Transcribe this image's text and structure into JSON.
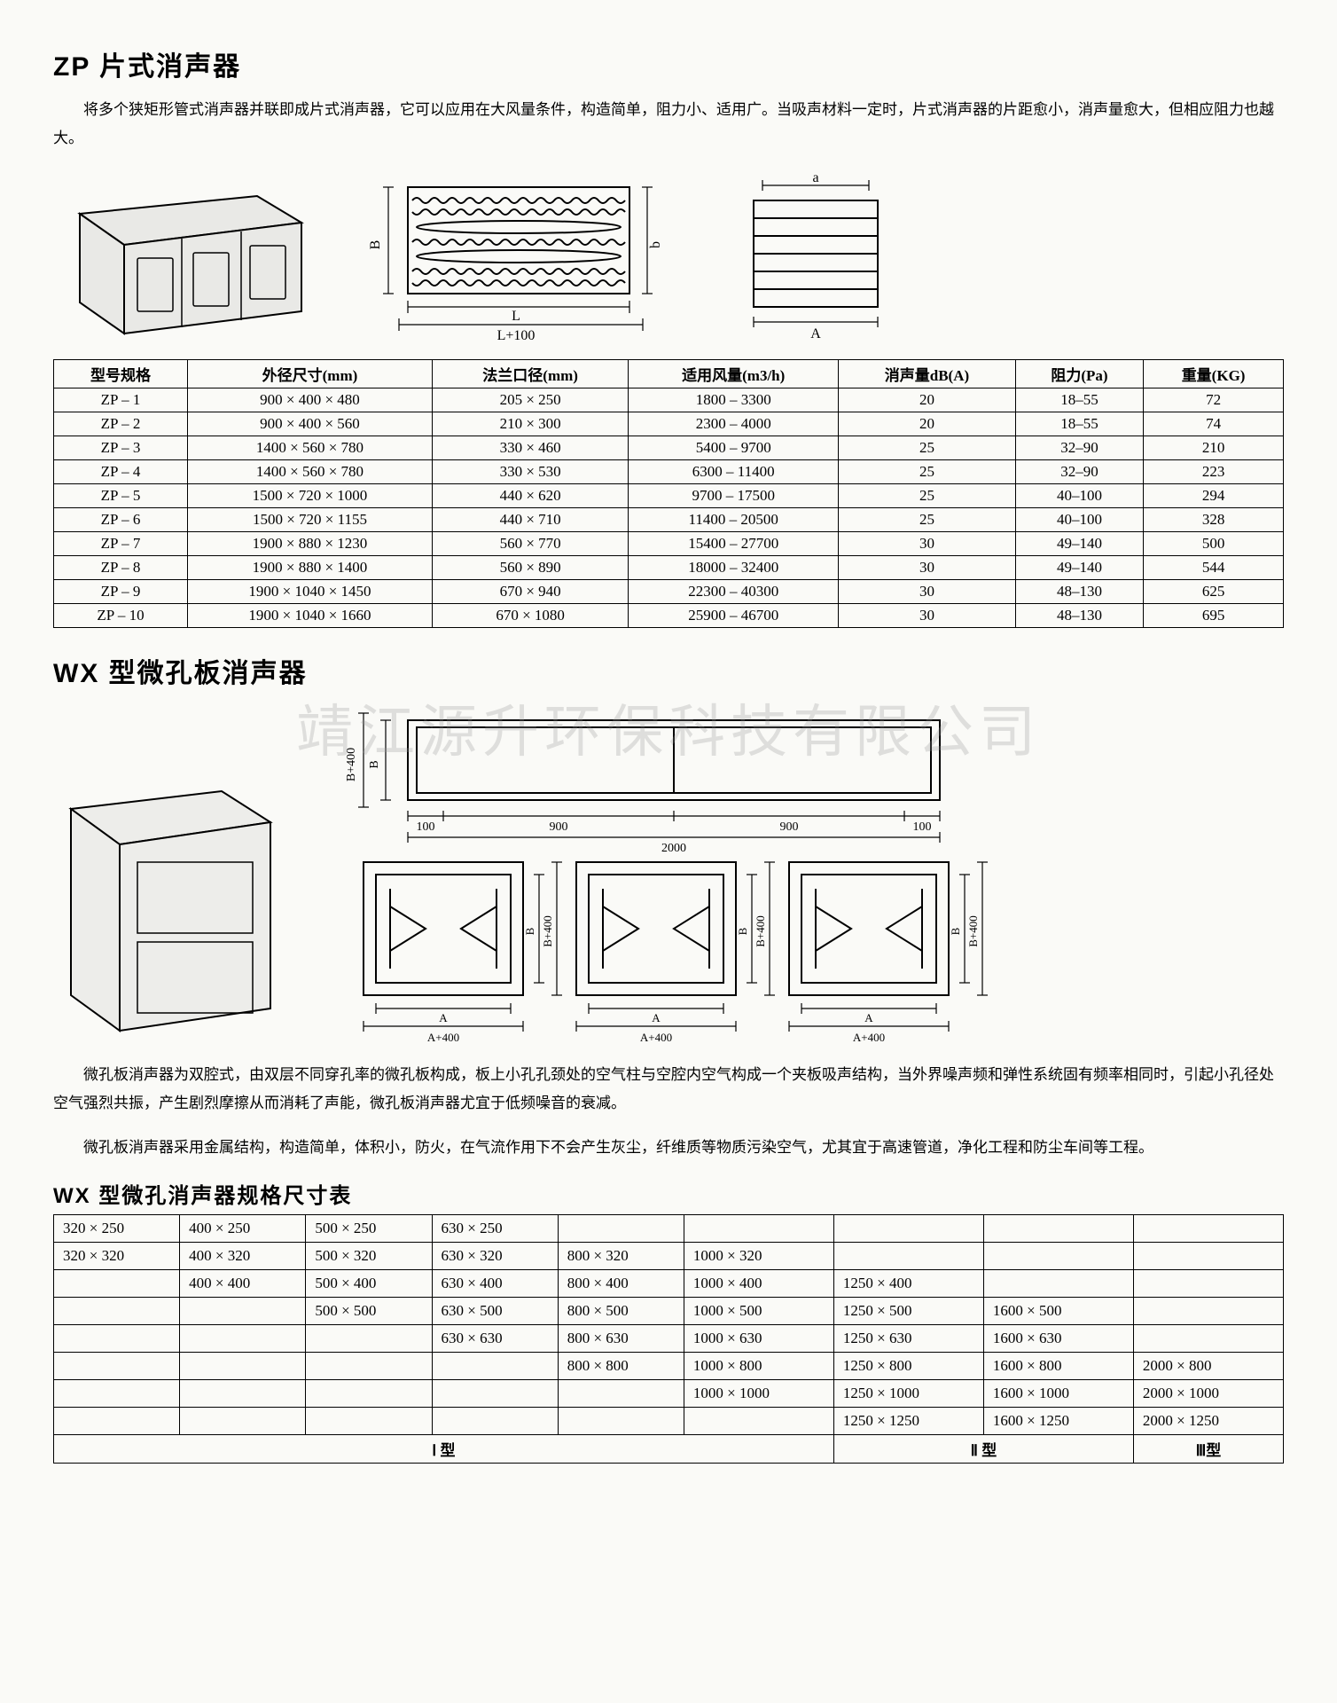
{
  "zp": {
    "title": "ZP 片式消声器",
    "intro": "将多个狭矩形管式消声器并联即成片式消声器，它可以应用在大风量条件，构造简单，阻力小、适用广。当吸声材料一定时，片式消声器的片距愈小，消声量愈大，但相应阻力也越大。",
    "diagram": {
      "labels": {
        "L": "L",
        "Lplus": "L+100",
        "B": "B",
        "b": "b",
        "a": "a",
        "A": "A"
      },
      "stroke": "#000"
    },
    "table": {
      "headers": [
        "型号规格",
        "外径尺寸(mm)",
        "法兰口径(mm)",
        "适用风量(m3/h)",
        "消声量dB(A)",
        "阻力(Pa)",
        "重量(KG)"
      ],
      "rows": [
        [
          "ZP – 1",
          "900 × 400 × 480",
          "205 × 250",
          "1800 – 3300",
          "20",
          "18–55",
          "72"
        ],
        [
          "ZP – 2",
          "900 × 400 × 560",
          "210 × 300",
          "2300 – 4000",
          "20",
          "18–55",
          "74"
        ],
        [
          "ZP – 3",
          "1400 × 560 × 780",
          "330 × 460",
          "5400 – 9700",
          "25",
          "32–90",
          "210"
        ],
        [
          "ZP – 4",
          "1400 × 560 × 780",
          "330 × 530",
          "6300 – 11400",
          "25",
          "32–90",
          "223"
        ],
        [
          "ZP – 5",
          "1500 × 720 × 1000",
          "440 × 620",
          "9700 – 17500",
          "25",
          "40–100",
          "294"
        ],
        [
          "ZP – 6",
          "1500 × 720 × 1155",
          "440 × 710",
          "11400 – 20500",
          "25",
          "40–100",
          "328"
        ],
        [
          "ZP – 7",
          "1900 × 880 × 1230",
          "560 × 770",
          "15400 – 27700",
          "30",
          "49–140",
          "500"
        ],
        [
          "ZP – 8",
          "1900 × 880 × 1400",
          "560 × 890",
          "18000 – 32400",
          "30",
          "49–140",
          "544"
        ],
        [
          "ZP – 9",
          "1900 × 1040 × 1450",
          "670 × 940",
          "22300 – 40300",
          "30",
          "48–130",
          "625"
        ],
        [
          "ZP – 10",
          "1900 × 1040 × 1660",
          "670 × 1080",
          "25900 – 46700",
          "30",
          "48–130",
          "695"
        ]
      ]
    }
  },
  "wx": {
    "title": "WX 型微孔板消声器",
    "watermark": "靖江源升环保科技有限公司",
    "diagram": {
      "labels": {
        "B": "B",
        "Bplus": "B+400",
        "hundred": "100",
        "ninehundred": "900",
        "twothousand": "2000",
        "A": "A",
        "Aplus": "A+400"
      }
    },
    "para1": "微孔板消声器为双腔式，由双层不同穿孔率的微孔板构成，板上小孔孔颈处的空气柱与空腔内空气构成一个夹板吸声结构，当外界噪声频和弹性系统固有频率相同时，引起小孔径处空气强烈共振，产生剧烈摩擦从而消耗了声能，微孔板消声器尤宜于低频噪音的衰减。",
    "para2": "微孔板消声器采用金属结构，构造简单，体积小，防火，在气流作用下不会产生灰尘，纤维质等物质污染空气，尤其宜于高速管道，净化工程和防尘车间等工程。",
    "sizetable_title": "WX 型微孔消声器规格尺寸表",
    "sizes": {
      "types": [
        "Ⅰ 型",
        "Ⅱ 型",
        "Ⅲ型"
      ],
      "grid": [
        [
          "320 × 250",
          "400 × 250",
          "500 × 250",
          "630 × 250",
          "",
          "",
          "",
          "",
          ""
        ],
        [
          "320 × 320",
          "400 × 320",
          "500 × 320",
          "630 × 320",
          "800 × 320",
          "1000 × 320",
          "",
          "",
          ""
        ],
        [
          "",
          "400 × 400",
          "500 × 400",
          "630 × 400",
          "800 × 400",
          "1000 × 400",
          "1250 × 400",
          "",
          ""
        ],
        [
          "",
          "",
          "500 × 500",
          "630 × 500",
          "800 × 500",
          "1000 × 500",
          "1250 × 500",
          "1600 × 500",
          ""
        ],
        [
          "",
          "",
          "",
          "630 × 630",
          "800 × 630",
          "1000 × 630",
          "1250 × 630",
          "1600 × 630",
          ""
        ],
        [
          "",
          "",
          "",
          "",
          "800 × 800",
          "1000 × 800",
          "1250 × 800",
          "1600 × 800",
          "2000 × 800"
        ],
        [
          "",
          "",
          "",
          "",
          "",
          "1000 × 1000",
          "1250 × 1000",
          "1600 × 1000",
          "2000 × 1000"
        ],
        [
          "",
          "",
          "",
          "",
          "",
          "",
          "1250 × 1250",
          "1600 × 1250",
          "2000 × 1250"
        ]
      ],
      "typerow_spans": [
        6,
        2,
        1
      ]
    }
  }
}
